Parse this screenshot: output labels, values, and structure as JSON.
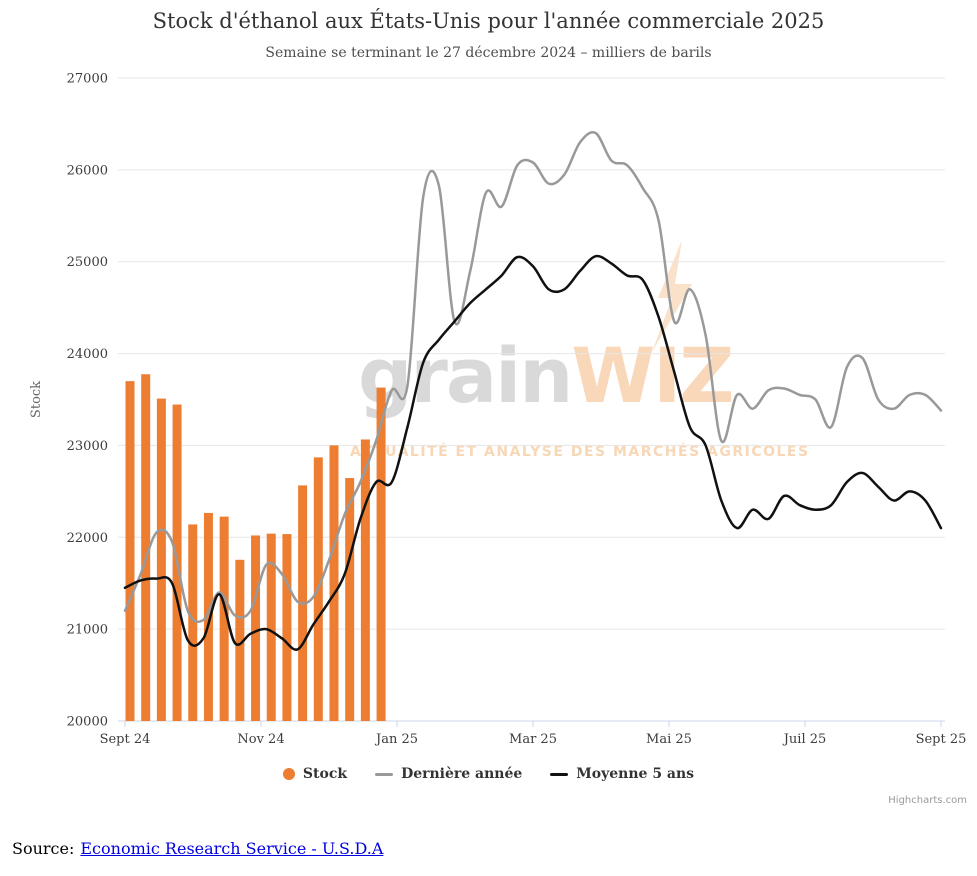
{
  "chart_data": {
    "type": "combo",
    "title": "Stock d'éthanol aux États-Unis pour l'année commerciale 2025",
    "subtitle": "Semaine se terminant le 27 décembre 2024 – milliers de barils",
    "ylabel": "Stock",
    "ylim": [
      20000,
      27000
    ],
    "y_tick_step": 1000,
    "y_tick_labels": [
      "20000",
      "21000",
      "22000",
      "23000",
      "24000",
      "25000",
      "26000",
      "27000"
    ],
    "x_tick_labels": [
      "Sept 24",
      "Nov 24",
      "Jan 25",
      "Mar 25",
      "Mai 25",
      "Juil 25",
      "Sept 25"
    ],
    "x_weeks": 52,
    "grid": true,
    "legend_position": "bottom",
    "series": [
      {
        "name": "Stock",
        "type": "bar",
        "color": "#ed7d31",
        "values": [
          23700,
          23775,
          23510,
          23445,
          22140,
          22265,
          22225,
          21755,
          22020,
          22040,
          22035,
          22565,
          22870,
          23000,
          22645,
          23065,
          23630
        ]
      },
      {
        "name": "Dernière année",
        "type": "line",
        "color": "#999999",
        "values": [
          21200,
          21600,
          22050,
          21950,
          21200,
          21100,
          21400,
          21150,
          21200,
          21700,
          21600,
          21300,
          21350,
          21750,
          22250,
          22600,
          23050,
          23600,
          23650,
          25700,
          25830,
          24350,
          24900,
          25750,
          25600,
          26050,
          26080,
          25850,
          25950,
          26300,
          26400,
          26100,
          26050,
          25800,
          25450,
          24350,
          24700,
          24200,
          23050,
          23550,
          23400,
          23600,
          23620,
          23550,
          23500,
          23200,
          23850,
          23950,
          23500,
          23400,
          23550,
          23550,
          23380
        ]
      },
      {
        "name": "Moyenne 5 ans",
        "type": "line",
        "color": "#111111",
        "values": [
          21450,
          21530,
          21550,
          21500,
          20880,
          20900,
          21380,
          20850,
          20950,
          21000,
          20900,
          20780,
          21050,
          21300,
          21600,
          22200,
          22600,
          22600,
          23200,
          23900,
          24150,
          24350,
          24550,
          24700,
          24850,
          25050,
          24950,
          24700,
          24700,
          24900,
          25060,
          24980,
          24850,
          24800,
          24400,
          23800,
          23200,
          23000,
          22400,
          22100,
          22300,
          22200,
          22450,
          22350,
          22300,
          22350,
          22600,
          22700,
          22550,
          22400,
          22500,
          22400,
          22100
        ]
      }
    ]
  },
  "watermark": {
    "brand_gray": "grain",
    "brand_orange": "WIZ",
    "tagline": "ACTUALITÉ ET ANALYSE DES MARCHÉS AGRICOLES"
  },
  "credits": "Highcharts.com",
  "source": {
    "prefix": "Source:",
    "link_text": "Economic Research Service - U.S.D.A"
  }
}
